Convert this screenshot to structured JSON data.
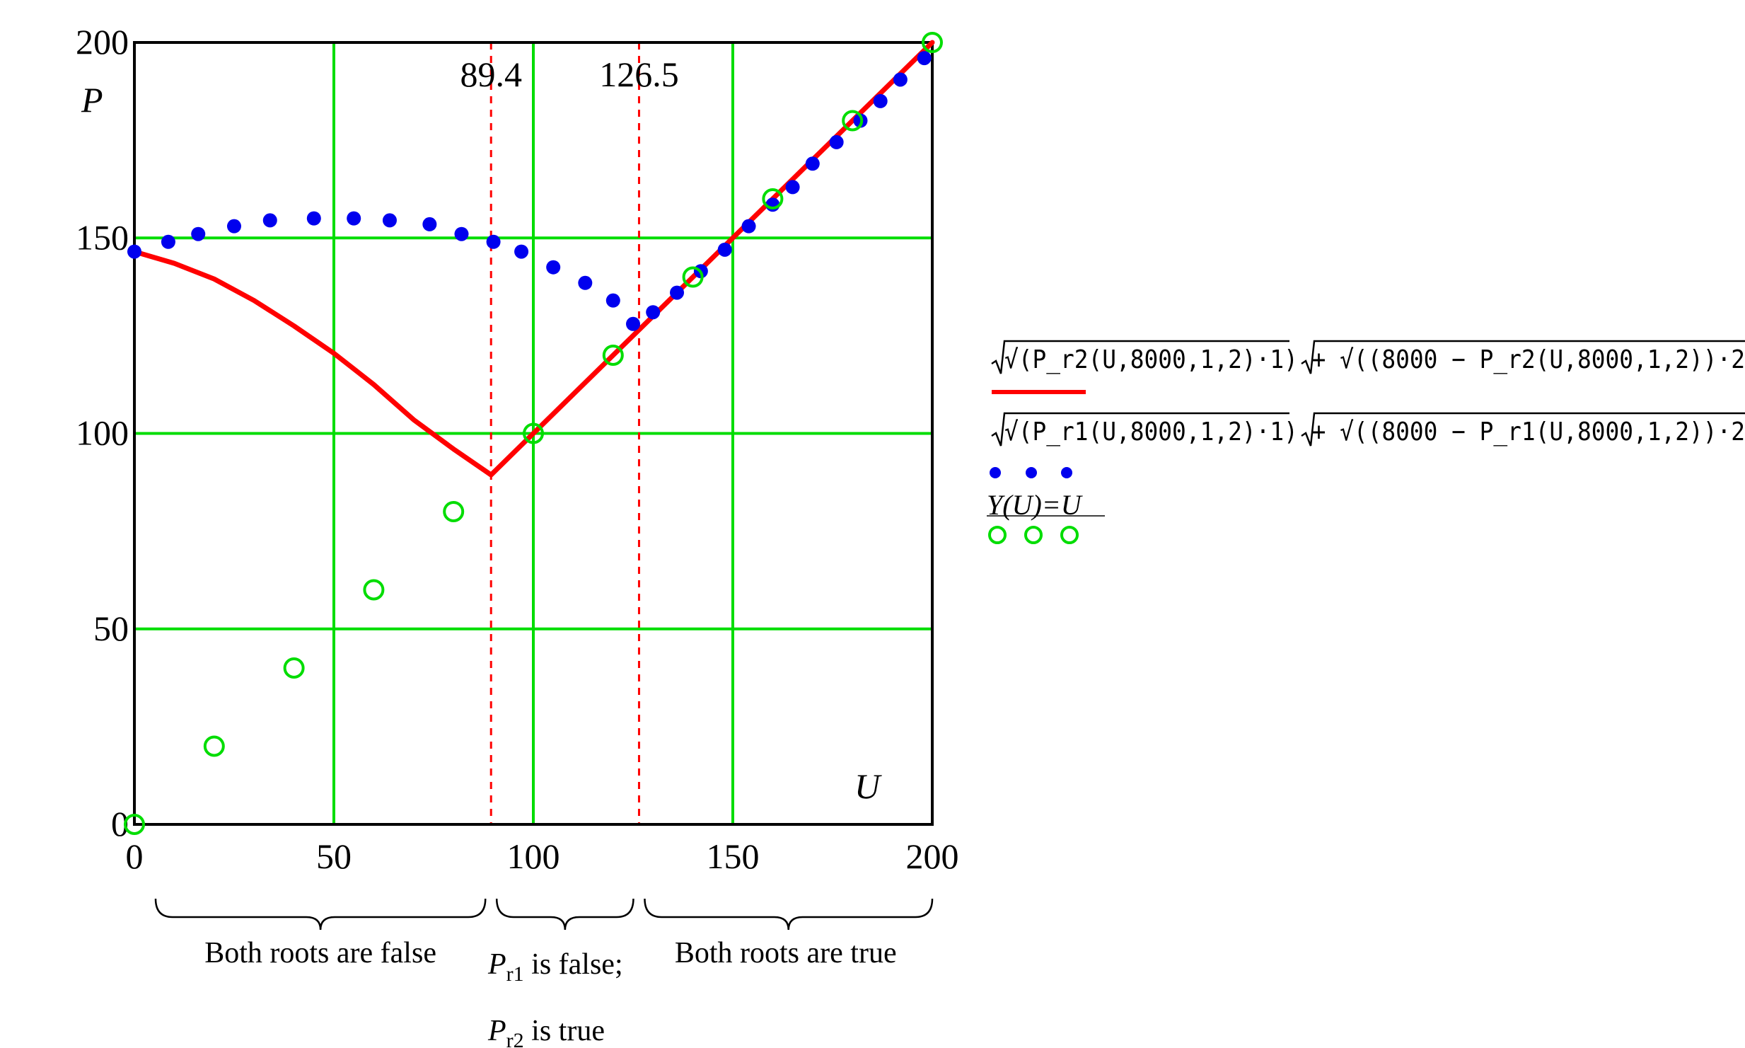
{
  "chart_data": {
    "type": "line",
    "xlabel": "U",
    "ylabel": "P",
    "xlim": [
      0,
      200
    ],
    "ylim": [
      0,
      200
    ],
    "x_ticks": [
      0,
      50,
      100,
      150,
      200
    ],
    "y_ticks": [
      0,
      50,
      100,
      150,
      200
    ],
    "x_tick_labels": [
      "0",
      "50",
      "100",
      "150",
      "200"
    ],
    "y_tick_labels": [
      "0",
      "50",
      "100",
      "150",
      "200"
    ],
    "grid": true,
    "grid_color": "#00dd00",
    "vlines": [
      {
        "x": 89.4,
        "label": "89.4",
        "color": "#ff0000"
      },
      {
        "x": 126.5,
        "label": "126.5",
        "color": "#ff0000"
      }
    ],
    "series": [
      {
        "name": "√(P_r2(U,8000,1,2)·1) + √((8000 − P_r2(U,8000,1,2))·2",
        "style": "line",
        "color": "#ff0000",
        "x": [
          0,
          10,
          20,
          30,
          40,
          50,
          60,
          70,
          80,
          89.4,
          100,
          110,
          120,
          126.5,
          140,
          150,
          160,
          170,
          180,
          190,
          200
        ],
        "y": [
          146.5,
          143.5,
          139.5,
          134.0,
          127.5,
          120.5,
          112.5,
          103.5,
          96.0,
          89.4,
          100,
          110,
          120,
          126.5,
          140,
          150,
          160,
          170,
          180,
          190,
          200
        ]
      },
      {
        "name": "√(P_r1(U,8000,1,2)·1) + √((8000 − P_r1(U,8000,1,2))·2",
        "style": "dots",
        "color": "#0000ee",
        "x": [
          0,
          8.5,
          16,
          25,
          34,
          45,
          55,
          64,
          74,
          82,
          90,
          97,
          105,
          113,
          120,
          125,
          130,
          136,
          142,
          148,
          154,
          160,
          165,
          170,
          176,
          182,
          187,
          192,
          198
        ],
        "y": [
          146.5,
          149,
          151,
          153,
          154.5,
          155,
          155,
          154.5,
          153.5,
          151,
          149,
          146.5,
          142.5,
          138.5,
          134,
          128,
          131,
          136,
          141.5,
          147,
          153,
          158.5,
          163,
          169,
          174.5,
          180,
          185,
          190.5,
          196
        ]
      },
      {
        "name": "Y(U)=U",
        "style": "circles",
        "color": "#00dd00",
        "x": [
          0,
          20,
          40,
          60,
          80,
          100,
          120,
          140,
          160,
          180,
          200
        ],
        "y": [
          0,
          20,
          40,
          60,
          80,
          100,
          120,
          140,
          160,
          180,
          200
        ]
      }
    ],
    "regions": [
      {
        "x0": 0,
        "x1": 89.4,
        "label": "Both roots are false"
      },
      {
        "x0": 89.4,
        "x1": 126.5,
        "label1_var": "P",
        "label1_sub": "r1",
        "label1_text": " is false;",
        "label2_var": "P",
        "label2_sub": "r2",
        "label2_text": " is true"
      },
      {
        "x0": 126.5,
        "x1": 200,
        "label": "Both roots are true"
      }
    ]
  }
}
